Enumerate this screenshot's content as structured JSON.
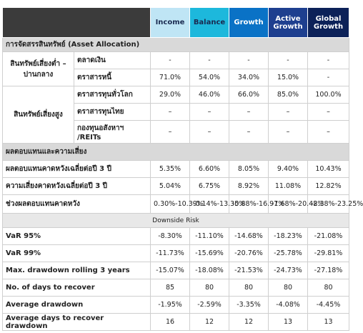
{
  "header": {
    "columns": [
      "Income",
      "Balance",
      "Growth",
      "Active Growth",
      "Global Growth"
    ]
  },
  "allocation": {
    "title": "การจัดสรรสินทรัพย์ (Asset Allocation)",
    "groups": [
      {
        "label": "สินทรัพย์เสี่ยงต่ำ –ปานกลาง",
        "rows": [
          {
            "label": "ตลาดเงิน",
            "values": [
              "-",
              "-",
              "-",
              "-",
              "-"
            ]
          },
          {
            "label": "ตราสารหนี้",
            "values": [
              "71.0%",
              "54.0%",
              "34.0%",
              "15.0%",
              "-"
            ]
          }
        ]
      },
      {
        "label": "สินทรัพย์เสี่ยงสูง",
        "rows": [
          {
            "label": "ตราสารทุนทั่วโลก",
            "values": [
              "29.0%",
              "46.0%",
              "66.0%",
              "85.0%",
              "100.0%"
            ]
          },
          {
            "label": "ตราสารทุนไทย",
            "values": [
              "–",
              "–",
              "–",
              "–",
              "–"
            ]
          },
          {
            "label": "กองทุนอสังหาฯ /REITs",
            "values": [
              "–",
              "–",
              "–",
              "–",
              "–"
            ]
          }
        ]
      }
    ]
  },
  "returns": {
    "title": "ผลตอบแทนและความเสี่ยง",
    "rows": [
      {
        "label": "ผลตอบแทนคาดหวังเฉลี่ยต่อปี 3 ปี",
        "values": [
          "5.35%",
          "6.60%",
          "8.05%",
          "9.40%",
          "10.43%"
        ]
      },
      {
        "label": "ความเสี่ยงคาดหวังเฉลี่ยต่อปี 3 ปี",
        "values": [
          "5.04%",
          "6.75%",
          "8.92%",
          "11.08%",
          "12.82%"
        ]
      },
      {
        "label": "ช่วงผลตอบแทนคาดหวัง",
        "values": [
          "0.30%-10.39%",
          "-0.14%-13.35%",
          "-0.88%-16.97%",
          "-1.68%-20.48%",
          "-2.38%-23.25%"
        ]
      }
    ]
  },
  "downside": {
    "title": "Downside Risk",
    "rows": [
      {
        "label": "VaR 95%",
        "values": [
          "-8.30%",
          "-11.10%",
          "-14.68%",
          "-18.23%",
          "-21.08%"
        ]
      },
      {
        "label": "VaR 99%",
        "values": [
          "-11.73%",
          "-15.69%",
          "-20.76%",
          "-25.78%",
          "-29.81%"
        ]
      },
      {
        "label": "Max. drawdown rolling 3 years",
        "values": [
          "-15.07%",
          "-18.08%",
          "-21.53%",
          "-24.73%",
          "-27.18%"
        ]
      },
      {
        "label": "No. of days to recover",
        "values": [
          "85",
          "80",
          "80",
          "80",
          "80"
        ]
      },
      {
        "label": "Average drawdown",
        "values": [
          "-1.95%",
          "-2.59%",
          "-3.35%",
          "-4.08%",
          "-4.45%"
        ]
      },
      {
        "label": "Average days to recover drawdown",
        "values": [
          "16",
          "12",
          "12",
          "13",
          "13"
        ]
      }
    ]
  }
}
